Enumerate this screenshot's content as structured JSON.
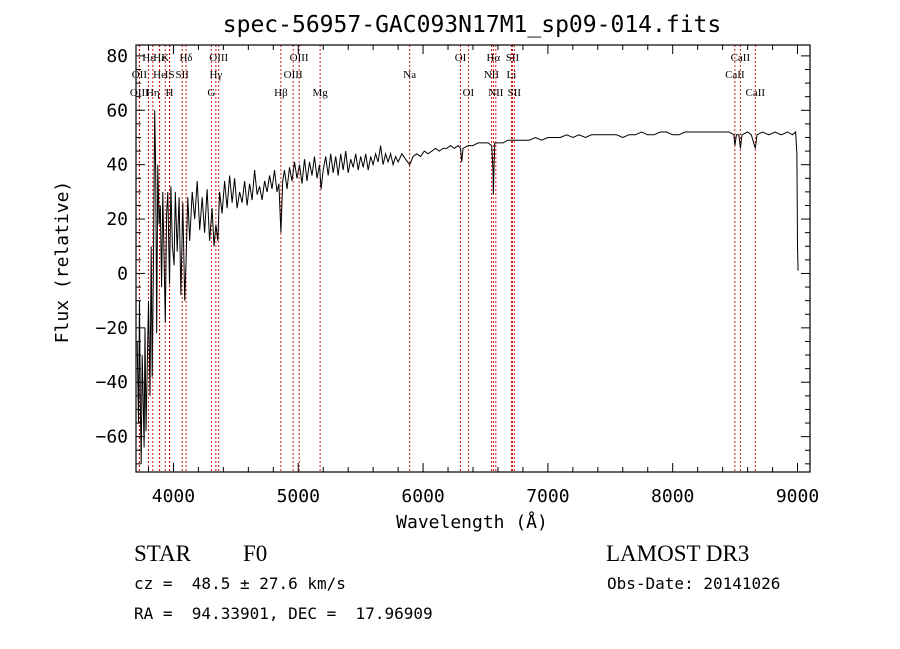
{
  "chart_data": {
    "type": "line",
    "title": "spec-56957-GAC093N17M1_sp09-014.fits",
    "xlabel": "Wavelength (Å)",
    "ylabel": "Flux (relative)",
    "xlim": [
      3700,
      9100
    ],
    "ylim": [
      -73,
      84
    ],
    "xticks": [
      4000,
      5000,
      6000,
      7000,
      8000,
      9000
    ],
    "yticks": [
      -60,
      -40,
      -20,
      0,
      20,
      40,
      60,
      80
    ],
    "line_color": "#000000",
    "marker_color": "#cc0000",
    "spectrum_points": [
      [
        3710,
        -25
      ],
      [
        3720,
        -55
      ],
      [
        3728,
        -10
      ],
      [
        3735,
        -50
      ],
      [
        3742,
        -70
      ],
      [
        3750,
        -30
      ],
      [
        3757,
        -45
      ],
      [
        3765,
        -64
      ],
      [
        3772,
        -20
      ],
      [
        3780,
        -58
      ],
      [
        3790,
        -35
      ],
      [
        3800,
        -10
      ],
      [
        3812,
        -45
      ],
      [
        3822,
        10
      ],
      [
        3830,
        -38
      ],
      [
        3840,
        5
      ],
      [
        3850,
        60
      ],
      [
        3858,
        38
      ],
      [
        3866,
        -22
      ],
      [
        3875,
        40
      ],
      [
        3885,
        18
      ],
      [
        3895,
        25
      ],
      [
        3905,
        -5
      ],
      [
        3915,
        30
      ],
      [
        3925,
        5
      ],
      [
        3935,
        -18
      ],
      [
        3945,
        22
      ],
      [
        3955,
        30
      ],
      [
        3968,
        -4
      ],
      [
        3980,
        32
      ],
      [
        3992,
        10
      ],
      [
        4005,
        3
      ],
      [
        4015,
        30
      ],
      [
        4030,
        8
      ],
      [
        4045,
        28
      ],
      [
        4060,
        -8
      ],
      [
        4075,
        26
      ],
      [
        4090,
        -10
      ],
      [
        4101,
        5
      ],
      [
        4115,
        28
      ],
      [
        4130,
        12
      ],
      [
        4150,
        30
      ],
      [
        4170,
        20
      ],
      [
        4190,
        34
      ],
      [
        4210,
        16
      ],
      [
        4230,
        28
      ],
      [
        4250,
        15
      ],
      [
        4270,
        31
      ],
      [
        4290,
        12
      ],
      [
        4310,
        24
      ],
      [
        4325,
        10
      ],
      [
        4340,
        18
      ],
      [
        4355,
        12
      ],
      [
        4370,
        30
      ],
      [
        4390,
        22
      ],
      [
        4410,
        34
      ],
      [
        4430,
        24
      ],
      [
        4450,
        36
      ],
      [
        4470,
        26
      ],
      [
        4490,
        35
      ],
      [
        4510,
        24
      ],
      [
        4530,
        30
      ],
      [
        4550,
        26
      ],
      [
        4570,
        34
      ],
      [
        4590,
        25
      ],
      [
        4610,
        33
      ],
      [
        4630,
        27
      ],
      [
        4650,
        38
      ],
      [
        4670,
        29
      ],
      [
        4690,
        32
      ],
      [
        4710,
        27
      ],
      [
        4730,
        34
      ],
      [
        4750,
        30
      ],
      [
        4770,
        36
      ],
      [
        4790,
        31
      ],
      [
        4810,
        38
      ],
      [
        4830,
        30
      ],
      [
        4845,
        33
      ],
      [
        4861,
        15
      ],
      [
        4875,
        34
      ],
      [
        4890,
        38
      ],
      [
        4910,
        31
      ],
      [
        4930,
        39
      ],
      [
        4950,
        34
      ],
      [
        4970,
        41
      ],
      [
        4990,
        35
      ],
      [
        5010,
        40
      ],
      [
        5030,
        33
      ],
      [
        5050,
        42
      ],
      [
        5070,
        34
      ],
      [
        5090,
        41
      ],
      [
        5110,
        36
      ],
      [
        5130,
        43
      ],
      [
        5150,
        35
      ],
      [
        5170,
        40
      ],
      [
        5183,
        31
      ],
      [
        5200,
        38
      ],
      [
        5220,
        43
      ],
      [
        5240,
        36
      ],
      [
        5260,
        44
      ],
      [
        5280,
        37
      ],
      [
        5300,
        43
      ],
      [
        5320,
        36
      ],
      [
        5340,
        44
      ],
      [
        5360,
        38
      ],
      [
        5380,
        45
      ],
      [
        5400,
        37
      ],
      [
        5420,
        42
      ],
      [
        5440,
        39
      ],
      [
        5460,
        44
      ],
      [
        5480,
        38
      ],
      [
        5500,
        43
      ],
      [
        5520,
        39
      ],
      [
        5540,
        44
      ],
      [
        5560,
        38
      ],
      [
        5580,
        43
      ],
      [
        5600,
        40
      ],
      [
        5620,
        44
      ],
      [
        5640,
        41
      ],
      [
        5660,
        47
      ],
      [
        5680,
        40
      ],
      [
        5700,
        44
      ],
      [
        5720,
        41
      ],
      [
        5740,
        44
      ],
      [
        5760,
        40
      ],
      [
        5780,
        43
      ],
      [
        5800,
        41
      ],
      [
        5830,
        44
      ],
      [
        5860,
        42
      ],
      [
        5893,
        40
      ],
      [
        5920,
        43
      ],
      [
        5950,
        44
      ],
      [
        5980,
        43
      ],
      [
        6010,
        45
      ],
      [
        6040,
        44
      ],
      [
        6070,
        45
      ],
      [
        6100,
        46
      ],
      [
        6130,
        45
      ],
      [
        6160,
        46
      ],
      [
        6190,
        46
      ],
      [
        6220,
        47
      ],
      [
        6250,
        46
      ],
      [
        6280,
        47
      ],
      [
        6300,
        46
      ],
      [
        6310,
        41
      ],
      [
        6320,
        46
      ],
      [
        6360,
        47
      ],
      [
        6400,
        47
      ],
      [
        6440,
        48
      ],
      [
        6480,
        48
      ],
      [
        6520,
        48
      ],
      [
        6550,
        47
      ],
      [
        6560,
        38
      ],
      [
        6563,
        29
      ],
      [
        6568,
        39
      ],
      [
        6575,
        48
      ],
      [
        6600,
        48
      ],
      [
        6640,
        48
      ],
      [
        6680,
        49
      ],
      [
        6720,
        49
      ],
      [
        6760,
        49
      ],
      [
        6800,
        49
      ],
      [
        6850,
        49
      ],
      [
        6900,
        50
      ],
      [
        6950,
        49
      ],
      [
        7000,
        50
      ],
      [
        7050,
        50
      ],
      [
        7100,
        50
      ],
      [
        7150,
        51
      ],
      [
        7200,
        50
      ],
      [
        7250,
        51
      ],
      [
        7300,
        50
      ],
      [
        7350,
        51
      ],
      [
        7400,
        51
      ],
      [
        7450,
        51
      ],
      [
        7500,
        51
      ],
      [
        7550,
        51
      ],
      [
        7600,
        50
      ],
      [
        7650,
        51
      ],
      [
        7700,
        51
      ],
      [
        7750,
        52
      ],
      [
        7800,
        51
      ],
      [
        7850,
        51
      ],
      [
        7900,
        52
      ],
      [
        7950,
        52
      ],
      [
        8000,
        51
      ],
      [
        8050,
        51
      ],
      [
        8100,
        52
      ],
      [
        8150,
        52
      ],
      [
        8200,
        52
      ],
      [
        8250,
        52
      ],
      [
        8300,
        52
      ],
      [
        8350,
        52
      ],
      [
        8400,
        52
      ],
      [
        8450,
        52
      ],
      [
        8490,
        51
      ],
      [
        8498,
        47
      ],
      [
        8510,
        51
      ],
      [
        8530,
        51
      ],
      [
        8542,
        46
      ],
      [
        8555,
        51
      ],
      [
        8600,
        52
      ],
      [
        8630,
        51
      ],
      [
        8662,
        46
      ],
      [
        8675,
        51
      ],
      [
        8720,
        52
      ],
      [
        8770,
        51
      ],
      [
        8820,
        52
      ],
      [
        8870,
        51
      ],
      [
        8920,
        52
      ],
      [
        8960,
        51
      ],
      [
        8985,
        52
      ],
      [
        8995,
        44
      ],
      [
        9000,
        10
      ],
      [
        9005,
        1
      ]
    ],
    "lines": [
      {
        "label": "Hε",
        "wavelength": 3800,
        "row": 1
      },
      {
        "label": "OII",
        "wavelength": 3727,
        "row": 2
      },
      {
        "label": "OIII",
        "wavelength": 3727,
        "row": 3
      },
      {
        "label": "Hε",
        "wavelength": 3889,
        "row": 1
      },
      {
        "label": "He",
        "wavelength": 3889,
        "row": 2
      },
      {
        "label": "Hη",
        "wavelength": 3835,
        "row": 3
      },
      {
        "label": "K",
        "wavelength": 3934,
        "row": 1
      },
      {
        "label": "IS",
        "wavelength": 3970,
        "row": 2
      },
      {
        "label": "H",
        "wavelength": 3968,
        "row": 3
      },
      {
        "label": "Hδ",
        "wavelength": 4101,
        "row": 1
      },
      {
        "label": "SII",
        "wavelength": 4070,
        "row": 2
      },
      {
        "label": "OIII",
        "wavelength": 4363,
        "row": 1
      },
      {
        "label": "Hγ",
        "wavelength": 4340,
        "row": 2
      },
      {
        "label": "G",
        "wavelength": 4304,
        "row": 3
      },
      {
        "label": "Hβ",
        "wavelength": 4861,
        "row": 3
      },
      {
        "label": "OIII",
        "wavelength": 5007,
        "row": 1
      },
      {
        "label": "OIII",
        "wavelength": 4959,
        "row": 2
      },
      {
        "label": "Mg",
        "wavelength": 5175,
        "row": 3
      },
      {
        "label": "Na",
        "wavelength": 5893,
        "row": 2
      },
      {
        "label": "OI",
        "wavelength": 6300,
        "row": 1
      },
      {
        "label": "OI",
        "wavelength": 6363,
        "row": 3
      },
      {
        "label": "Hα",
        "wavelength": 6563,
        "row": 1
      },
      {
        "label": "NII",
        "wavelength": 6548,
        "row": 2
      },
      {
        "label": "NII",
        "wavelength": 6583,
        "row": 3
      },
      {
        "label": "SII",
        "wavelength": 6716,
        "row": 1
      },
      {
        "label": "Li",
        "wavelength": 6708,
        "row": 2
      },
      {
        "label": "SII",
        "wavelength": 6731,
        "row": 3
      },
      {
        "label": "CaII",
        "wavelength": 8542,
        "row": 1
      },
      {
        "label": "CaII",
        "wavelength": 8498,
        "row": 2
      },
      {
        "label": "CaII",
        "wavelength": 8662,
        "row": 3
      }
    ]
  },
  "info": {
    "object_class": "STAR",
    "subclass": "F0",
    "survey": "LAMOST DR3",
    "redshift": "cz =  48.5 ± 27.6 km/s",
    "obs_date": "Obs-Date: 20141026",
    "coords": "RA =  94.33901, DEC =  17.96909"
  }
}
